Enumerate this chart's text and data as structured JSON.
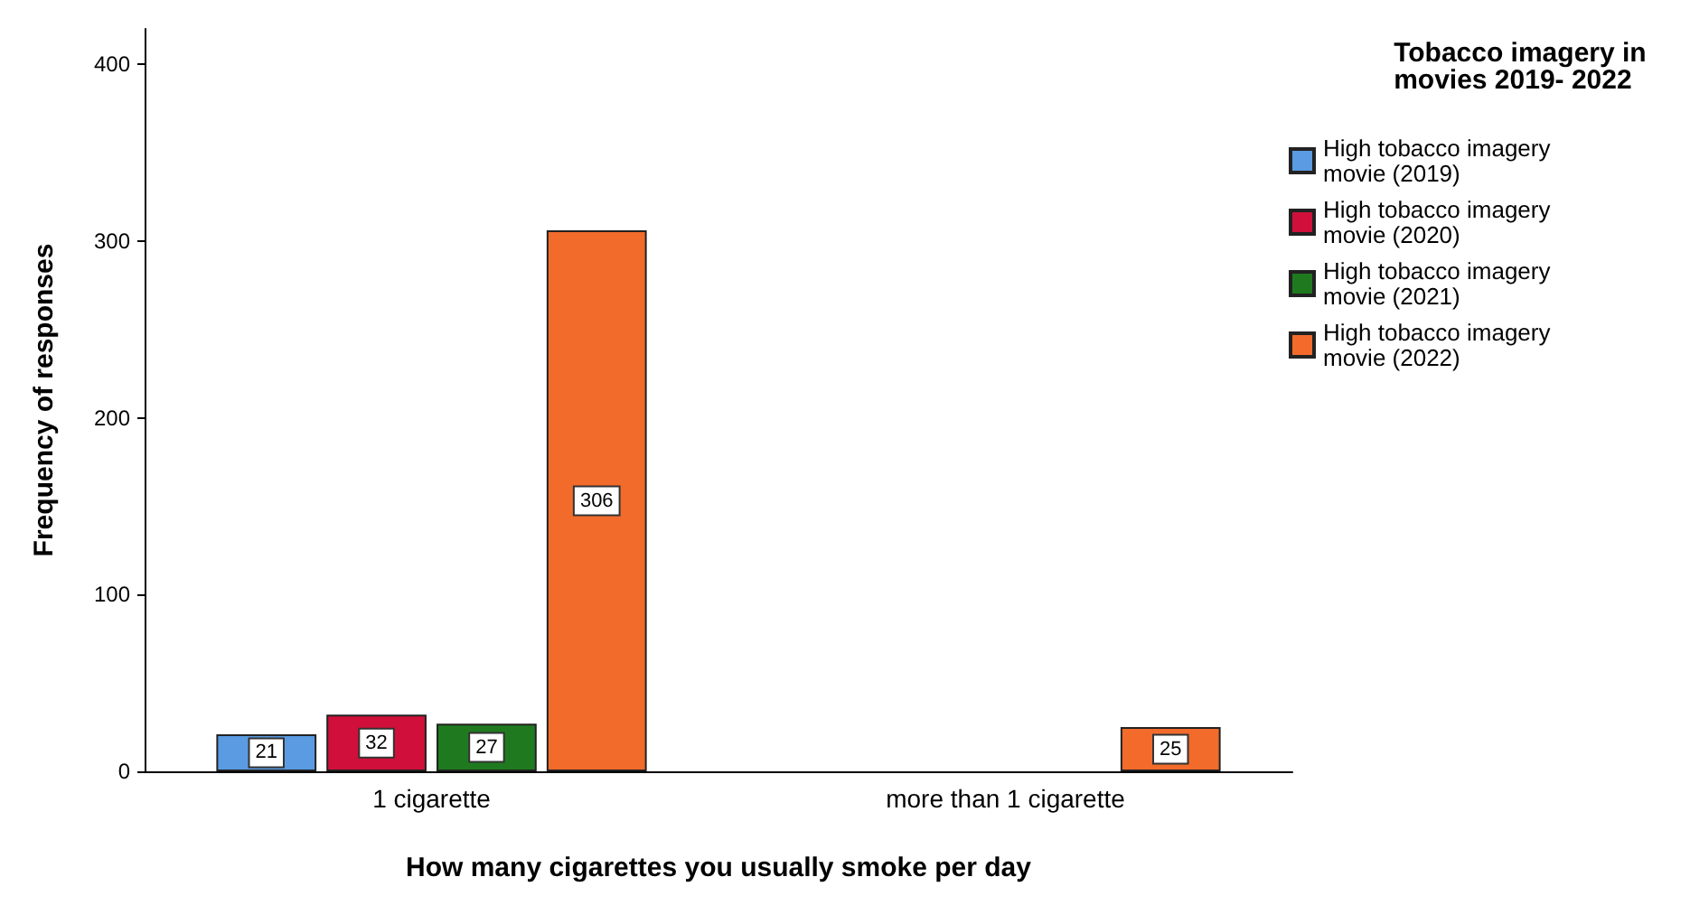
{
  "chart_data": {
    "type": "bar",
    "xlabel": "How many cigarettes you usually smoke per day",
    "ylabel": "Frequency of responses",
    "legend_title": "Tobacco imagery in movies 2019- 2022",
    "categories": [
      "1 cigarette",
      "more than 1 cigarette"
    ],
    "series": [
      {
        "name": "High tobacco imagery movie (2019)",
        "color": "#5a9be2",
        "values": [
          21,
          null
        ]
      },
      {
        "name": "High tobacco imagery movie (2020)",
        "color": "#d0103a",
        "values": [
          32,
          null
        ]
      },
      {
        "name": "High tobacco imagery movie (2021)",
        "color": "#1f7a1f",
        "values": [
          27,
          null
        ]
      },
      {
        "name": "High tobacco imagery movie (2022)",
        "color": "#f26b2b",
        "values": [
          306,
          25
        ]
      }
    ],
    "ylim": [
      0,
      420
    ],
    "yticks": [
      0,
      100,
      200,
      300,
      400
    ],
    "grid": false,
    "legend": "top right",
    "data_labels": true
  }
}
